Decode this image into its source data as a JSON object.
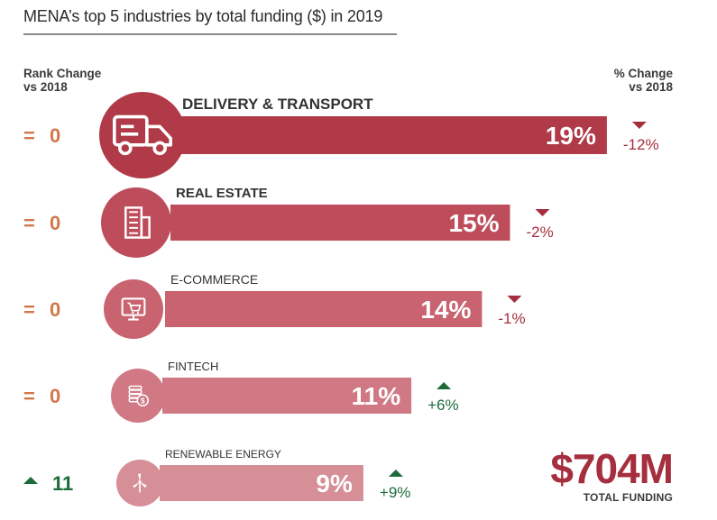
{
  "chart_data": {
    "type": "bar",
    "title": "MENA’s top 5 industries by total funding ($) in 2019",
    "rank_header": [
      "Rank Change",
      "vs 2018"
    ],
    "change_header": [
      "% Change",
      "vs 2018"
    ],
    "categories": [
      "DELIVERY & TRANSPORT",
      "REAL ESTATE",
      "E-COMMERCE",
      "FINTECH",
      "RENEWABLE ENERGY"
    ],
    "values": [
      19,
      15,
      14,
      11,
      9
    ],
    "value_labels": [
      "19%",
      "15%",
      "14%",
      "11%",
      "9%"
    ],
    "change_labels": [
      "-12%",
      "-2%",
      "-1%",
      "+6%",
      "+9%"
    ],
    "change_direction": [
      "down",
      "down",
      "down",
      "up",
      "up"
    ],
    "rank_change_labels": [
      "0",
      "0",
      "0",
      "0",
      "11"
    ],
    "rank_change_direction": [
      "equal",
      "equal",
      "equal",
      "equal",
      "up"
    ],
    "icons": [
      "delivery-truck-icon",
      "building-icon",
      "shopping-cart-monitor-icon",
      "coin-stack-icon",
      "wind-turbine-icon"
    ],
    "total_funding_value": "$704M",
    "total_funding_label": "TOTAL FUNDING",
    "colors": {
      "bars": [
        "#b03a48",
        "#bd4d5b",
        "#c8636f",
        "#d07984",
        "#d68e97"
      ],
      "down": "#a52f3e",
      "up": "#1d6b3a",
      "rank_equal": "#d2774a",
      "rank_up": "#1d6b3a"
    }
  }
}
